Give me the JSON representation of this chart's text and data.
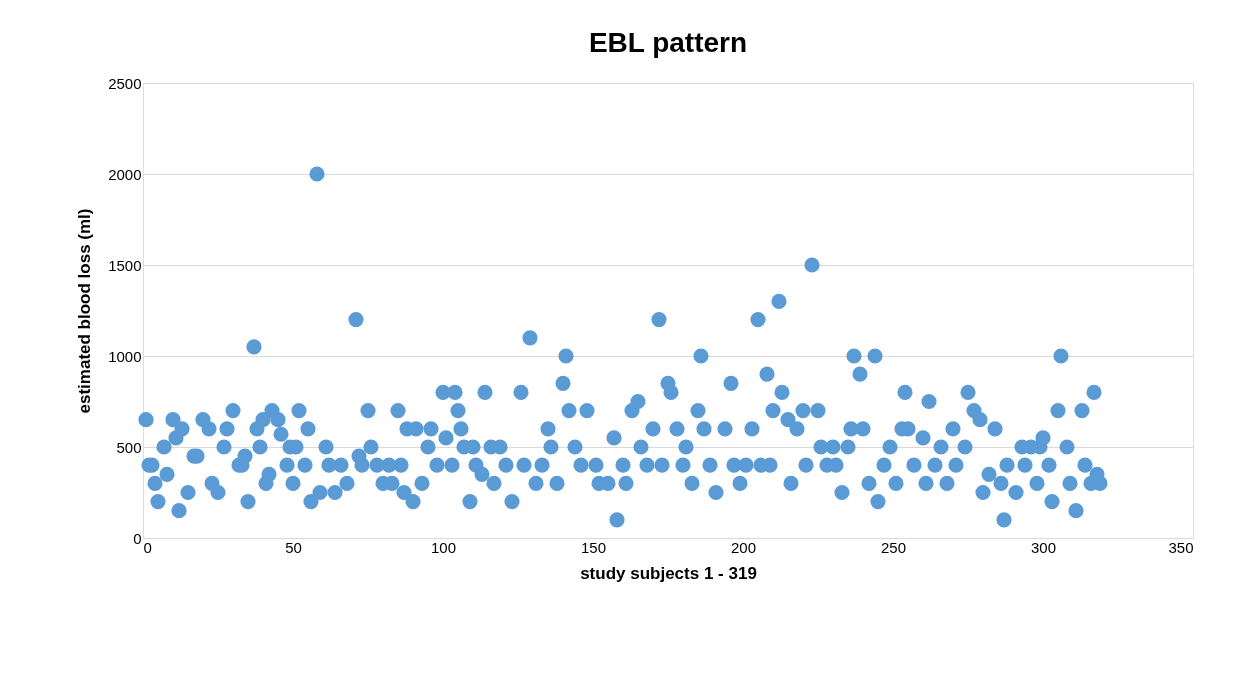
{
  "chart_data": {
    "type": "scatter",
    "title": "EBL pattern",
    "xlabel": "study subjects 1 - 319",
    "ylabel": "estimated blood loss (ml)",
    "xlim": [
      0,
      350
    ],
    "xticks": [
      0,
      50,
      100,
      150,
      200,
      250,
      300,
      350
    ],
    "ylim": [
      0,
      2500
    ],
    "yticks": [
      0,
      500,
      1000,
      1500,
      2000,
      2500
    ],
    "grid": "y",
    "marker": "circle",
    "x": [
      1,
      2,
      3,
      4,
      5,
      7,
      8,
      10,
      11,
      12,
      13,
      15,
      17,
      18,
      20,
      22,
      23,
      25,
      27,
      28,
      30,
      32,
      33,
      34,
      35,
      37,
      38,
      39,
      40,
      41,
      42,
      43,
      45,
      46,
      48,
      49,
      50,
      51,
      52,
      54,
      55,
      56,
      58,
      59,
      61,
      62,
      64,
      66,
      68,
      71,
      72,
      73,
      75,
      76,
      78,
      80,
      82,
      83,
      85,
      86,
      87,
      88,
      90,
      91,
      93,
      95,
      96,
      98,
      100,
      101,
      103,
      104,
      105,
      106,
      107,
      109,
      110,
      111,
      113,
      114,
      116,
      117,
      119,
      121,
      123,
      126,
      127,
      129,
      131,
      133,
      135,
      136,
      138,
      140,
      141,
      142,
      144,
      146,
      148,
      151,
      152,
      155,
      157,
      158,
      160,
      161,
      163,
      165,
      166,
      168,
      170,
      172,
      173,
      175,
      176,
      178,
      180,
      181,
      183,
      185,
      186,
      187,
      189,
      191,
      194,
      196,
      197,
      199,
      201,
      203,
      205,
      206,
      208,
      209,
      210,
      212,
      213,
      215,
      216,
      218,
      220,
      221,
      223,
      225,
      226,
      228,
      230,
      231,
      233,
      235,
      236,
      237,
      239,
      240,
      242,
      244,
      245,
      247,
      249,
      251,
      253,
      254,
      255,
      257,
      260,
      261,
      262,
      264,
      266,
      268,
      270,
      271,
      274,
      275,
      277,
      279,
      280,
      282,
      284,
      286,
      287,
      288,
      291,
      293,
      294,
      296,
      298,
      299,
      300,
      302,
      303,
      305,
      306,
      308,
      309,
      311,
      313,
      314,
      316,
      317,
      318,
      319
    ],
    "series": [
      {
        "color": "#5b9bd5",
        "values": [
          650,
          400,
          400,
          300,
          200,
          500,
          350,
          650,
          550,
          150,
          600,
          250,
          450,
          450,
          650,
          600,
          300,
          250,
          500,
          600,
          700,
          400,
          400,
          450,
          200,
          1050,
          600,
          500,
          650,
          300,
          350,
          700,
          650,
          570,
          400,
          500,
          300,
          500,
          700,
          400,
          600,
          200,
          2000,
          250,
          500,
          400,
          250,
          400,
          300,
          1200,
          450,
          400,
          700,
          500,
          400,
          300,
          400,
          300,
          700,
          400,
          250,
          600,
          200,
          600,
          300,
          500,
          600,
          400,
          800,
          550,
          400,
          800,
          700,
          600,
          500,
          200,
          500,
          400,
          350,
          800,
          500,
          300,
          500,
          400,
          200,
          800,
          400,
          1100,
          300,
          400,
          600,
          500,
          300,
          850,
          1000,
          700,
          500,
          400,
          700,
          400,
          300,
          300,
          550,
          100,
          400,
          300,
          700,
          750,
          500,
          400,
          600,
          1200,
          400,
          850,
          800,
          600,
          400,
          500,
          300,
          700,
          1000,
          600,
          400,
          250,
          600,
          850,
          400,
          300,
          400,
          600,
          1200,
          400,
          900,
          400,
          700,
          1300,
          800,
          650,
          300,
          600,
          700,
          400,
          1500,
          700,
          500,
          400,
          500,
          400,
          250,
          500,
          600,
          1000,
          900,
          600,
          300,
          1000,
          200,
          400,
          500,
          300,
          600,
          800,
          600,
          400,
          550,
          300,
          750,
          400,
          500,
          300,
          600,
          400,
          500,
          800,
          700,
          650,
          250,
          350,
          600,
          300,
          100,
          400,
          250,
          500,
          400,
          500,
          300,
          500,
          550,
          400,
          200,
          700,
          1000,
          500,
          300,
          150,
          700,
          400,
          300,
          800,
          350,
          300
        ]
      }
    ]
  }
}
